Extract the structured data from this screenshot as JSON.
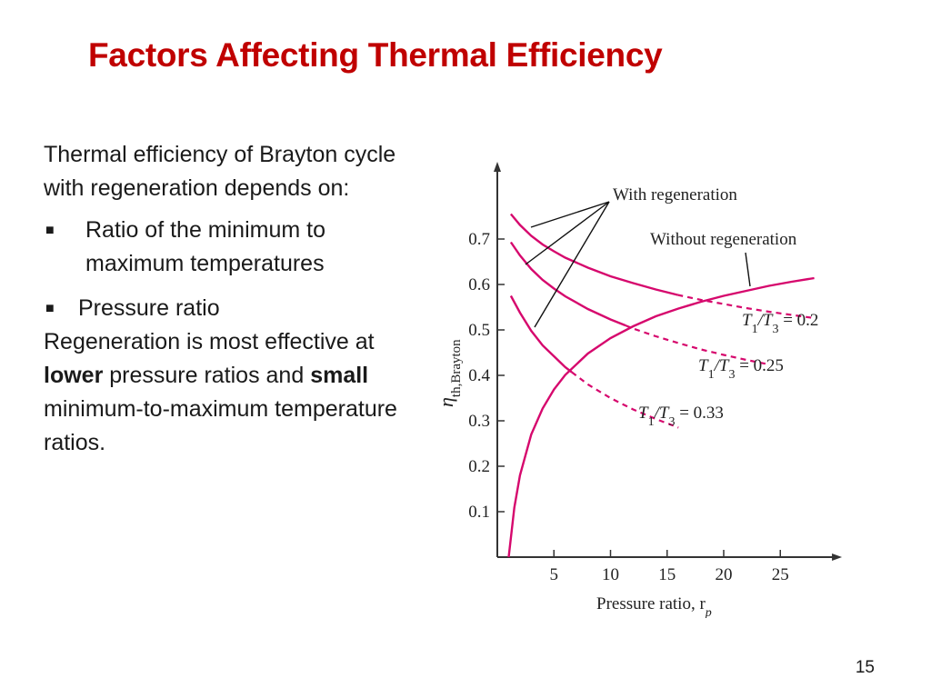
{
  "title": "Factors Affecting Thermal Efficiency",
  "body": {
    "intro": "Thermal efficiency of Brayton cycle with regeneration depends on:",
    "bullets": [
      "Ratio of the minimum to maximum temperatures",
      "Pressure ratio"
    ],
    "conclusion_parts": [
      "Regeneration is most effective at ",
      "lower",
      " pressure ratios and ",
      "small",
      " minimum-to-maximum temperature ratios."
    ]
  },
  "page_number": "15",
  "colors": {
    "title": "#c00000",
    "curve": "#d6086d",
    "axis": "#333333"
  },
  "chart_data": {
    "type": "line",
    "title": "",
    "xlabel": "Pressure ratio, r",
    "xlabel_sub": "p",
    "ylabel": "η",
    "ylabel_sub": "th,Brayton",
    "xlim": [
      0,
      29
    ],
    "ylim": [
      0,
      0.8
    ],
    "xticks": [
      5,
      10,
      15,
      20,
      25
    ],
    "yticks": [
      0.1,
      0.2,
      0.3,
      0.4,
      0.5,
      0.6,
      0.7
    ],
    "annotations": {
      "with_regen": "With regeneration",
      "without_regen": "Without regeneration"
    },
    "series": [
      {
        "name": "Without regeneration",
        "style": "solid",
        "x": [
          1,
          1.5,
          2,
          3,
          4,
          5,
          6,
          8,
          10,
          12,
          14,
          16,
          18,
          20,
          22,
          24,
          26,
          28
        ],
        "y": [
          0,
          0.109,
          0.18,
          0.27,
          0.327,
          0.369,
          0.401,
          0.448,
          0.482,
          0.508,
          0.53,
          0.547,
          0.562,
          0.575,
          0.586,
          0.597,
          0.606,
          0.614
        ]
      },
      {
        "name": "T1/T3 = 0.2",
        "label_parts": [
          "T",
          "1",
          "/T",
          "3",
          " = 0.2"
        ],
        "solid_until": 15.93,
        "x": [
          1.2,
          2,
          3,
          4,
          5,
          6,
          8,
          10,
          12,
          14,
          15.93,
          18,
          20,
          22,
          24,
          26,
          28
        ],
        "y": [
          0.755,
          0.731,
          0.707,
          0.688,
          0.673,
          0.659,
          0.637,
          0.618,
          0.603,
          0.589,
          0.577,
          0.566,
          0.557,
          0.548,
          0.54,
          0.533,
          0.526
        ]
      },
      {
        "name": "T1/T3 = 0.25",
        "label_parts": [
          "T",
          "1",
          "/T",
          "3",
          " = 0.25"
        ],
        "solid_until": 11.31,
        "x": [
          1.2,
          2,
          3,
          4,
          5,
          6,
          8,
          10,
          11.31,
          12,
          14,
          16,
          18,
          20,
          22,
          24
        ],
        "y": [
          0.693,
          0.664,
          0.634,
          0.61,
          0.591,
          0.574,
          0.546,
          0.523,
          0.51,
          0.503,
          0.486,
          0.471,
          0.457,
          0.445,
          0.434,
          0.424
        ]
      },
      {
        "name": "T1/T3 = 0.33",
        "label_parts": [
          "T",
          "1",
          "/T",
          "3",
          " = 0.33"
        ],
        "solid_until": 6.58,
        "x": [
          1.2,
          2,
          3,
          4,
          5,
          6,
          6.58,
          8,
          10,
          12,
          14,
          16
        ],
        "y": [
          0.575,
          0.538,
          0.498,
          0.466,
          0.442,
          0.418,
          0.407,
          0.38,
          0.35,
          0.325,
          0.304,
          0.285
        ]
      }
    ]
  }
}
